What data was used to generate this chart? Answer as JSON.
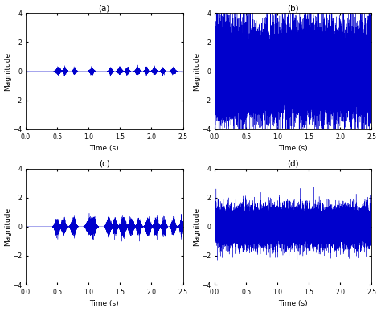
{
  "title_a": "(a)",
  "title_b": "(b)",
  "title_c": "(c)",
  "title_d": "(d)",
  "xlabel": "Time (s)",
  "ylabel": "Magnitude",
  "xlim": [
    0,
    2.5
  ],
  "ylim": [
    -4,
    4
  ],
  "xticks": [
    0,
    0.5,
    1,
    1.5,
    2,
    2.5
  ],
  "yticks": [
    -4,
    -2,
    0,
    2,
    4
  ],
  "line_color": "#0000CC",
  "background_color": "#ffffff",
  "signal_amplitude_a": 0.12,
  "signal_amplitude_c": 0.28,
  "noise_amplitude_b": 1.5,
  "noise_amplitude_d": 0.65,
  "fs": 8000,
  "duration": 2.5,
  "seed": 42
}
